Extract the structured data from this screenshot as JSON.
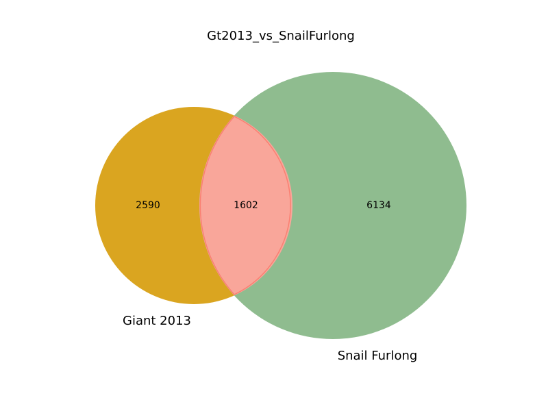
{
  "chart_data": {
    "type": "venn",
    "title": "Gt2013_vs_SnailFurlong",
    "sets": [
      {
        "name": "Giant 2013",
        "only": 2590,
        "color": "#DAA520"
      },
      {
        "name": "Snail Furlong",
        "only": 6134,
        "color": "#8FBC8F"
      }
    ],
    "intersection": {
      "value": 1602,
      "color": "#FA8072",
      "overlap_color": "#F9A69A"
    },
    "labels": {
      "left_only": "2590",
      "overlap": "1602",
      "right_only": "6134"
    }
  }
}
